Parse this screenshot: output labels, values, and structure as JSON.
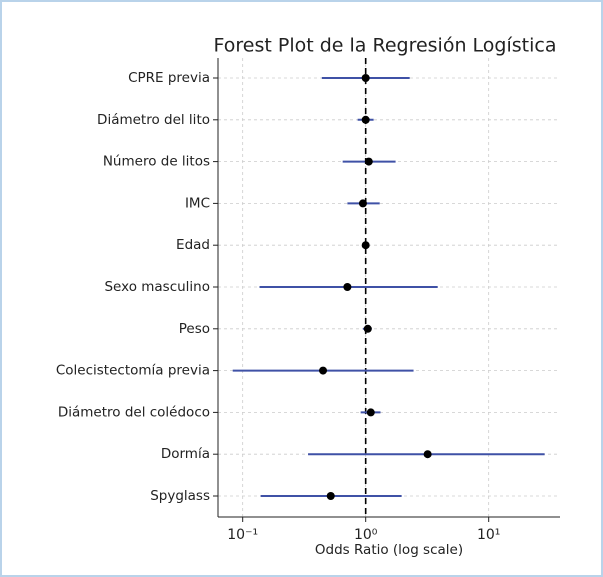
{
  "chart_data": {
    "type": "forest",
    "title": "Forest Plot de la Regresión Logística",
    "xlabel": "Odds Ratio (log scale)",
    "categories": [
      "CPRE previa",
      "Diámetro del lito",
      "Número de litos",
      "IMC",
      "Edad",
      "Sexo masculino",
      "Peso",
      "Colecistectomía previa",
      "Diámetro del colédoco",
      "Dormía",
      "Spyglass"
    ],
    "values": [
      1.0,
      1.0,
      1.06,
      0.95,
      1.0,
      0.71,
      1.04,
      0.45,
      1.1,
      3.19,
      0.52
    ],
    "lower": [
      0.44,
      0.86,
      0.65,
      0.71,
      0.97,
      0.137,
      0.95,
      0.083,
      0.91,
      0.34,
      0.14
    ],
    "upper": [
      2.28,
      1.16,
      1.75,
      1.3,
      1.03,
      3.85,
      1.12,
      2.45,
      1.32,
      28.5,
      1.96
    ],
    "color": "#3f51a6",
    "point_color": "#000000",
    "reference_line": 1,
    "xscale": "log",
    "xlim": [
      0.063,
      38
    ],
    "xticks": [
      {
        "value": 0.1,
        "label": "10⁻¹"
      },
      {
        "value": 1,
        "label": "10⁰"
      },
      {
        "value": 10,
        "label": "10¹"
      }
    ],
    "grid": true
  }
}
